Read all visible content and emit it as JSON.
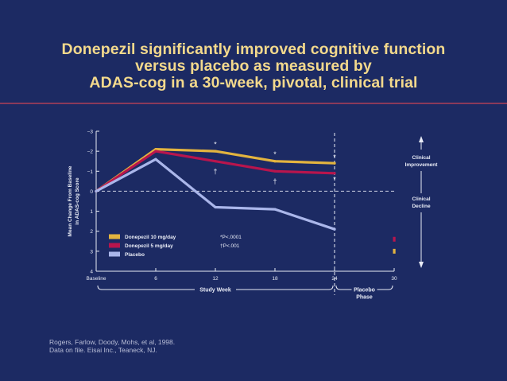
{
  "title_lines": [
    "Donepezil significantly improved cognitive function",
    "versus placebo as measured by",
    "ADAS-cog in a 30-week, pivotal, clinical trial"
  ],
  "footer_lines": [
    "Rogers, Farlow, Doody, Mohs, et al, 1998.",
    "Data on file. Eisai Inc., Teaneck, NJ."
  ],
  "chart_data": {
    "type": "line",
    "ylabel_lines": [
      "Mean Change From Baseline",
      "in ADAS-cog Score"
    ],
    "xlabel": "Study Week",
    "x_ticks": [
      {
        "x": 0,
        "label": "Baseline"
      },
      {
        "x": 6,
        "label": "6"
      },
      {
        "x": 12,
        "label": "12"
      },
      {
        "x": 18,
        "label": "18"
      },
      {
        "x": 24,
        "label": "24"
      },
      {
        "x": 30,
        "label": "30"
      }
    ],
    "y_ticks": [
      {
        "y": -3,
        "label": "−3"
      },
      {
        "y": -2,
        "label": "−2"
      },
      {
        "y": -1,
        "label": "−1"
      },
      {
        "y": 0,
        "label": "0"
      },
      {
        "y": 1,
        "label": "1"
      },
      {
        "y": 2,
        "label": "2"
      },
      {
        "y": 3,
        "label": "3"
      },
      {
        "y": 4,
        "label": "4"
      }
    ],
    "xlim": [
      0,
      30
    ],
    "ylim": [
      -3,
      4
    ],
    "y_inverted": true,
    "series": [
      {
        "name": "Donepezil 10 mg/day",
        "color": "#e3b43f",
        "x": [
          0,
          6,
          12,
          18,
          24
        ],
        "y": [
          0,
          -2.1,
          -2.0,
          -1.5,
          -1.4
        ],
        "washout_value": 3.0
      },
      {
        "name": "Donepezil 5 mg/day",
        "color": "#b8154d",
        "x": [
          0,
          6,
          12,
          18,
          24
        ],
        "y": [
          0,
          -2.0,
          -1.5,
          -1.0,
          -0.9
        ],
        "washout_value": 2.4
      },
      {
        "name": "Placebo",
        "color": "#aab6ea",
        "x": [
          0,
          6,
          12,
          18,
          24
        ],
        "y": [
          0,
          -1.6,
          0.8,
          0.9,
          1.9
        ]
      }
    ],
    "significance_marks": [
      {
        "symbol": "*",
        "x": 12,
        "y": -2.35
      },
      {
        "symbol": "*",
        "x": 18,
        "y": -1.85
      },
      {
        "symbol": "*",
        "x": 24,
        "y": -1.7
      },
      {
        "symbol": "*",
        "x": 24,
        "y": -0.6
      },
      {
        "symbol": "†",
        "x": 12,
        "y": -1.0
      },
      {
        "symbol": "†",
        "x": 18,
        "y": -0.5
      }
    ],
    "footnotes": [
      {
        "symbol": "*",
        "text": "P<.0001"
      },
      {
        "symbol": "†",
        "text": "P<.001"
      }
    ],
    "phase_divider_x": 24,
    "phase_labels": {
      "study_week": "Study Week",
      "placebo_phase_lines": [
        "Placebo",
        "Phase"
      ]
    },
    "annotations": {
      "improvement_lines": [
        "Clinical",
        "Improvement"
      ],
      "decline_lines": [
        "Clinical",
        "Decline"
      ]
    },
    "legend_placement": "bottom-left",
    "colors": {
      "background": "#1c2a63",
      "axis": "#e9ecf6",
      "text": "#e9ecf6",
      "title": "#f3d98c",
      "rule": "#8a3a5a"
    }
  }
}
